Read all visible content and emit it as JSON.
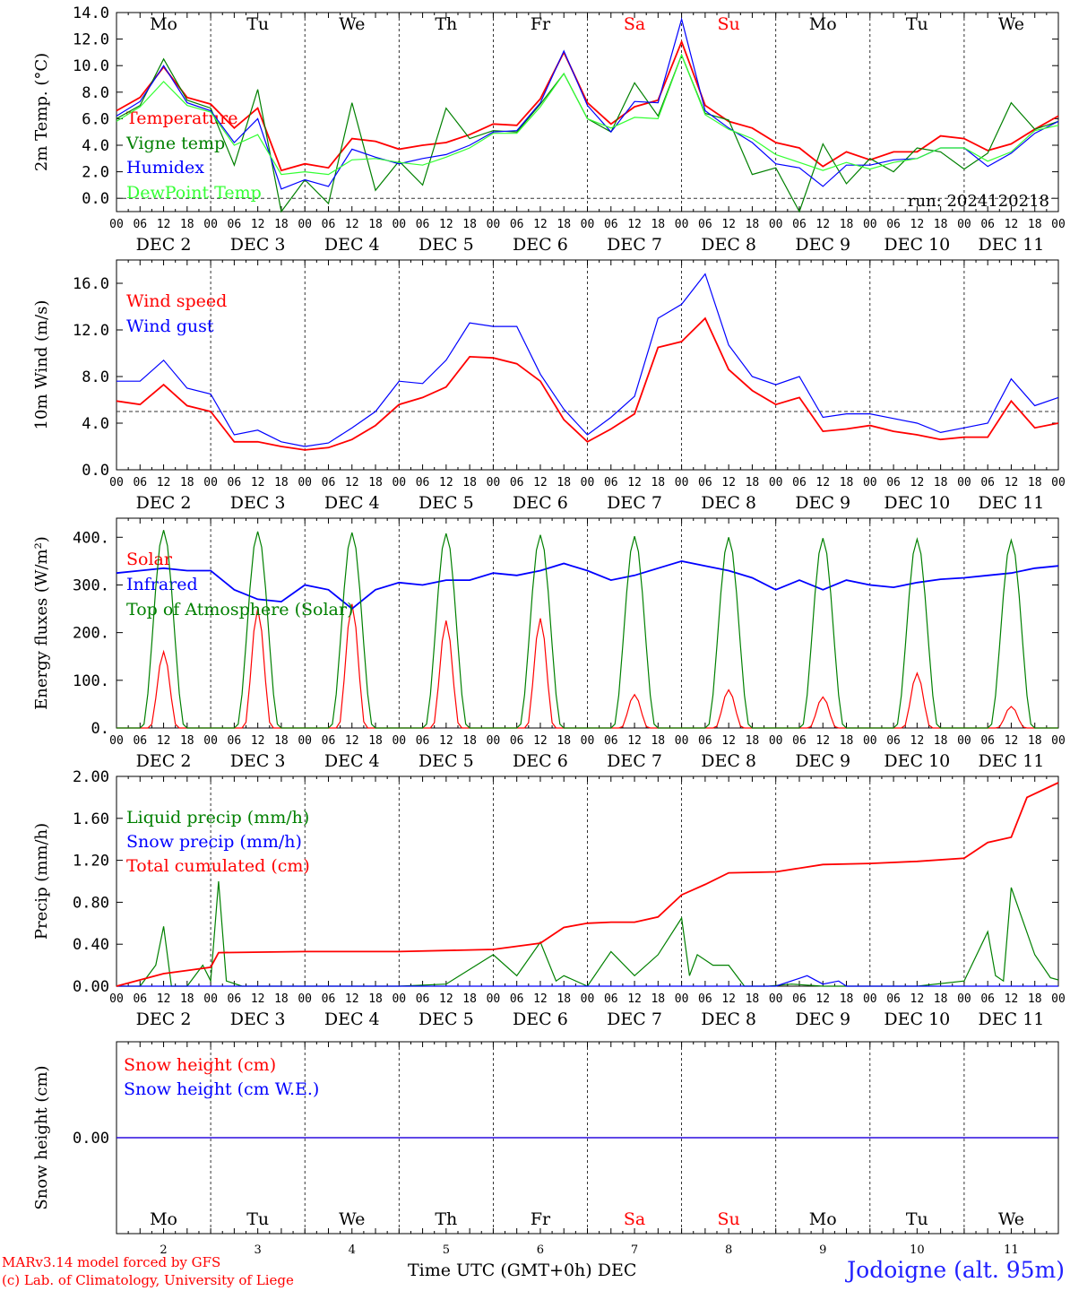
{
  "chart_data": {
    "type": "line",
    "station": "Jodoigne (alt. 95m)",
    "credits": [
      "MARv3.14 model forced by GFS",
      "(c) Lab. of Climatology, University of Liege"
    ],
    "x_title": "Time UTC (GMT+0h) DEC",
    "day_labels": [
      "DEC  2",
      "DEC  3",
      "DEC  4",
      "DEC  5",
      "DEC  6",
      "DEC  7",
      "DEC  8",
      "DEC  9",
      "DEC 10",
      "DEC 11"
    ],
    "weekdays": [
      "Mo",
      "Tu",
      "We",
      "Th",
      "Fr",
      "Sa",
      "Su",
      "Mo",
      "Tu",
      "We"
    ],
    "weekend_color": "#ff0000",
    "hour_ticks": [
      "00",
      "06",
      "12",
      "18"
    ],
    "bottom_day_numbers": [
      "2",
      "3",
      "4",
      "5",
      "6",
      "7",
      "8",
      "9",
      "10",
      "11"
    ],
    "x_range_hours": [
      0,
      240
    ],
    "panels": [
      {
        "id": "temperature",
        "ylabel": "2m Temp. (°C)",
        "ylim": [
          -1.0,
          14.0
        ],
        "yticks": [
          "0.0",
          "2.0",
          "4.0",
          "6.0",
          "8.0",
          "10.0",
          "12.0",
          "14.0"
        ],
        "reference_line": 0.0,
        "annotation": "run: 2024120218",
        "series": [
          {
            "name": "Temperature",
            "color": "#ff0000",
            "x": [
              0,
              6,
              12,
              18,
              24,
              30,
              36,
              42,
              48,
              54,
              60,
              66,
              72,
              78,
              84,
              90,
              96,
              102,
              108,
              114,
              120,
              126,
              132,
              138,
              144,
              150,
              156,
              162,
              168,
              174,
              180,
              186,
              192,
              198,
              204,
              210,
              216,
              222,
              228,
              234,
              240
            ],
            "values": [
              6.6,
              7.6,
              9.9,
              7.6,
              7.1,
              5.3,
              6.8,
              2.1,
              2.6,
              2.3,
              4.5,
              4.3,
              3.7,
              4.0,
              4.2,
              4.8,
              5.6,
              5.5,
              7.5,
              11.0,
              7.2,
              5.6,
              6.9,
              7.4,
              11.8,
              7.0,
              5.8,
              5.3,
              4.2,
              3.8,
              2.4,
              3.5,
              2.9,
              3.5,
              3.5,
              4.7,
              4.5,
              3.6,
              4.1,
              5.2,
              6.2
            ]
          },
          {
            "name": "Vigne temp",
            "color": "#008000",
            "x": [
              0,
              6,
              12,
              18,
              24,
              30,
              36,
              42,
              48,
              54,
              60,
              66,
              72,
              78,
              84,
              90,
              96,
              102,
              108,
              114,
              120,
              126,
              132,
              138,
              144,
              150,
              156,
              162,
              168,
              174,
              180,
              186,
              192,
              198,
              204,
              210,
              216,
              222,
              228,
              234,
              240
            ],
            "values": [
              6.0,
              7.0,
              10.5,
              7.4,
              6.8,
              2.5,
              8.2,
              -1.0,
              1.4,
              -0.4,
              7.2,
              0.6,
              2.8,
              1.0,
              6.8,
              4.5,
              5.1,
              5.0,
              7.1,
              9.4,
              6.0,
              5.0,
              8.7,
              6.2,
              10.8,
              6.4,
              5.9,
              1.8,
              2.3,
              -1.0,
              4.1,
              1.1,
              3.0,
              2.0,
              3.8,
              3.5,
              2.2,
              3.4,
              7.2,
              5.2,
              5.8
            ]
          },
          {
            "name": "Humidex",
            "color": "#0000ff",
            "x": [
              0,
              6,
              12,
              18,
              24,
              30,
              36,
              42,
              48,
              54,
              60,
              66,
              72,
              78,
              84,
              90,
              96,
              102,
              108,
              114,
              120,
              126,
              132,
              138,
              144,
              150,
              156,
              162,
              168,
              174,
              180,
              186,
              192,
              198,
              204,
              210,
              216,
              222,
              228,
              234,
              240
            ],
            "values": [
              6.2,
              7.3,
              10.0,
              7.2,
              6.6,
              4.2,
              6.0,
              0.7,
              1.4,
              0.9,
              3.7,
              3.1,
              2.6,
              3.0,
              3.3,
              4.0,
              5.0,
              5.1,
              7.2,
              11.1,
              7.0,
              5.0,
              7.3,
              7.2,
              13.5,
              6.6,
              5.3,
              4.2,
              2.6,
              2.3,
              0.9,
              2.5,
              2.5,
              2.9,
              3.0,
              3.8,
              3.8,
              2.4,
              3.4,
              4.9,
              5.8
            ]
          },
          {
            "name": "DewPoint Temp",
            "color": "#33ff33",
            "x": [
              0,
              6,
              12,
              18,
              24,
              30,
              36,
              42,
              48,
              54,
              60,
              66,
              72,
              78,
              84,
              90,
              96,
              102,
              108,
              114,
              120,
              126,
              132,
              138,
              144,
              150,
              156,
              162,
              168,
              174,
              180,
              186,
              192,
              198,
              204,
              210,
              216,
              222,
              228,
              234,
              240
            ],
            "values": [
              5.8,
              6.9,
              8.8,
              7.0,
              6.5,
              4.0,
              4.8,
              1.8,
              2.0,
              1.8,
              2.9,
              3.0,
              2.7,
              2.5,
              3.1,
              3.8,
              4.9,
              4.9,
              6.9,
              9.4,
              6.0,
              5.3,
              6.1,
              6.0,
              10.8,
              6.3,
              5.2,
              4.5,
              3.3,
              2.7,
              2.1,
              2.7,
              2.2,
              2.7,
              3.0,
              3.8,
              3.8,
              2.8,
              3.5,
              5.1,
              5.5
            ]
          }
        ]
      },
      {
        "id": "wind",
        "ylabel": "10m Wind (m/s)",
        "ylim": [
          0,
          18
        ],
        "yticks": [
          "0.0",
          "4.0",
          "8.0",
          "12.0",
          "16.0"
        ],
        "reference_line": 5.0,
        "series": [
          {
            "name": "Wind speed",
            "color": "#ff0000",
            "x": [
              0,
              6,
              12,
              18,
              24,
              30,
              36,
              42,
              48,
              54,
              60,
              66,
              72,
              78,
              84,
              90,
              96,
              102,
              108,
              114,
              120,
              126,
              132,
              138,
              144,
              150,
              156,
              162,
              168,
              174,
              180,
              186,
              192,
              198,
              204,
              210,
              216,
              222,
              228,
              234,
              240
            ],
            "values": [
              5.9,
              5.6,
              7.3,
              5.5,
              5.0,
              2.4,
              2.4,
              2.0,
              1.7,
              1.9,
              2.6,
              3.8,
              5.6,
              6.2,
              7.1,
              9.7,
              9.6,
              9.1,
              7.6,
              4.3,
              2.4,
              3.5,
              4.8,
              10.5,
              11.0,
              13.0,
              8.6,
              6.8,
              5.6,
              6.2,
              3.3,
              3.5,
              3.8,
              3.3,
              3.0,
              2.6,
              2.8,
              2.8,
              5.9,
              3.6,
              4.0
            ]
          },
          {
            "name": "Wind gust",
            "color": "#0000ff",
            "x": [
              0,
              6,
              12,
              18,
              24,
              30,
              36,
              42,
              48,
              54,
              60,
              66,
              72,
              78,
              84,
              90,
              96,
              102,
              108,
              114,
              120,
              126,
              132,
              138,
              144,
              150,
              156,
              162,
              168,
              174,
              180,
              186,
              192,
              198,
              204,
              210,
              216,
              222,
              228,
              234,
              240
            ],
            "values": [
              7.6,
              7.6,
              9.4,
              7.0,
              6.5,
              3.0,
              3.4,
              2.4,
              2.0,
              2.3,
              3.6,
              5.0,
              7.6,
              7.4,
              9.4,
              12.6,
              12.3,
              12.3,
              8.2,
              5.2,
              3.0,
              4.5,
              6.3,
              13.0,
              14.2,
              16.8,
              10.7,
              8.0,
              7.3,
              8.0,
              4.5,
              4.8,
              4.8,
              4.4,
              4.0,
              3.2,
              3.6,
              4.0,
              7.8,
              5.5,
              6.2
            ]
          }
        ]
      },
      {
        "id": "energy",
        "ylabel": "Energy fluxes (W/m²)",
        "ylim": [
          0,
          440
        ],
        "yticks": [
          "0.",
          "100.",
          "200.",
          "300.",
          "400."
        ],
        "series": [
          {
            "name": "Solar",
            "color": "#ff0000",
            "peaks": [
              160,
              250,
              260,
              225,
              230,
              70,
              80,
              65,
              115,
              45
            ]
          },
          {
            "name": "Infrared",
            "color": "#0000ff",
            "x": [
              0,
              6,
              12,
              18,
              24,
              30,
              36,
              42,
              48,
              54,
              60,
              66,
              72,
              78,
              84,
              90,
              96,
              102,
              108,
              114,
              120,
              126,
              132,
              138,
              144,
              150,
              156,
              162,
              168,
              174,
              180,
              186,
              192,
              198,
              204,
              210,
              216,
              222,
              228,
              234,
              240
            ],
            "values": [
              325,
              330,
              335,
              330,
              330,
              290,
              270,
              265,
              300,
              290,
              250,
              290,
              305,
              300,
              310,
              310,
              325,
              320,
              330,
              345,
              330,
              310,
              320,
              335,
              350,
              340,
              330,
              315,
              290,
              310,
              290,
              310,
              300,
              295,
              305,
              312,
              315,
              320,
              325,
              335,
              340
            ]
          },
          {
            "name": "Top of Atmosphere (Solar)",
            "color": "#008000",
            "peaks": [
              415,
              412,
              410,
              408,
              405,
              402,
              400,
              398,
              396,
              394
            ]
          }
        ]
      },
      {
        "id": "precip",
        "ylabel": "Precip (mm/h)",
        "ylim": [
          0,
          2.0
        ],
        "yticks": [
          "0.00",
          "0.40",
          "0.80",
          "1.20",
          "1.60",
          "2.00"
        ],
        "series": [
          {
            "name": "Liquid precip (mm/h)",
            "color": "#008000",
            "x": [
              0,
              6,
              10,
              12,
              14,
              18,
              22,
              24,
              26,
              28,
              32,
              48,
              72,
              84,
              96,
              102,
              108,
              112,
              114,
              120,
              126,
              132,
              138,
              144,
              146,
              148,
              152,
              156,
              160,
              166,
              172,
              180,
              192,
              204,
              216,
              222,
              224,
              226,
              228,
              234,
              238,
              240
            ],
            "values": [
              0,
              0,
              0.2,
              0.57,
              0,
              0,
              0.2,
              0.05,
              1.0,
              0.05,
              0,
              0,
              0,
              0.02,
              0.3,
              0.1,
              0.42,
              0.05,
              0.1,
              0,
              0.33,
              0.1,
              0.3,
              0.65,
              0.1,
              0.3,
              0.2,
              0.2,
              0,
              0,
              0.02,
              0,
              0,
              0,
              0.05,
              0.52,
              0.1,
              0.05,
              0.94,
              0.3,
              0.08,
              0.06
            ]
          },
          {
            "name": "Snow precip (mm/h)",
            "color": "#0000ff",
            "x": [
              0,
              168,
              176,
              180,
              184,
              186,
              188,
              240
            ],
            "values": [
              0,
              0,
              0.1,
              0.02,
              0.05,
              0,
              0,
              0
            ]
          },
          {
            "name": "Total cumulated (cm)",
            "color": "#ff0000",
            "x": [
              0,
              12,
              18,
              24,
              26,
              48,
              72,
              96,
              108,
              114,
              120,
              126,
              132,
              138,
              144,
              150,
              156,
              168,
              180,
              192,
              204,
              216,
              222,
              228,
              232,
              240
            ],
            "values": [
              0,
              0.12,
              0.15,
              0.18,
              0.32,
              0.33,
              0.33,
              0.35,
              0.41,
              0.56,
              0.6,
              0.61,
              0.61,
              0.66,
              0.87,
              0.97,
              1.08,
              1.09,
              1.16,
              1.17,
              1.19,
              1.22,
              1.37,
              1.42,
              1.8,
              1.94
            ]
          }
        ]
      },
      {
        "id": "snow",
        "ylabel": "Snow height (cm)",
        "ylim": [
          -1,
          1
        ],
        "yticks": [
          "0.00"
        ],
        "series": [
          {
            "name": "Snow height (cm)",
            "color": "#ff0000",
            "x": [
              0,
              240
            ],
            "values": [
              0,
              0
            ]
          },
          {
            "name": "Snow height (cm W.E.)",
            "color": "#0000ff",
            "x": [
              0,
              240
            ],
            "values": [
              0,
              0
            ]
          }
        ]
      }
    ]
  }
}
